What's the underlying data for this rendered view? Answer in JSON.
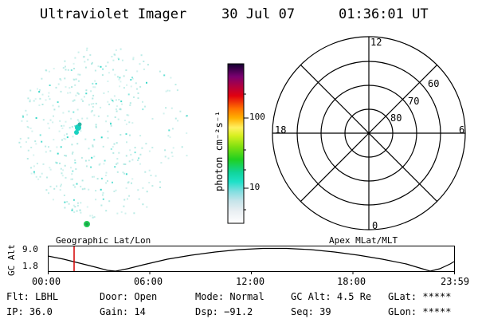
{
  "header": {
    "title": "Ultraviolet Imager",
    "date": "30 Jul 07",
    "time": "01:36:01 UT"
  },
  "colorbar": {
    "axis_label": "photon cm⁻²s⁻¹",
    "tick_100": "100",
    "tick_10": "10"
  },
  "polar_plot": {
    "mlt_labels": {
      "top": "12",
      "bottom": "0",
      "left": "18",
      "right": "6"
    },
    "lat_labels": [
      "60",
      "70",
      "80"
    ]
  },
  "projections": {
    "left": "Geographic Lat/Lon",
    "right": "Apex MLat/MLT"
  },
  "altitude_plot": {
    "ylabel": "GC Alt",
    "y_top": "9.0",
    "y_bottom": "1.8",
    "x_ticks": [
      "00:00",
      "06:00",
      "12:00",
      "18:00",
      "23:59"
    ]
  },
  "status": {
    "row1": [
      {
        "label": "Flt:",
        "value": "LBHL"
      },
      {
        "label": "Door:",
        "value": "Open"
      },
      {
        "label": "Mode:",
        "value": "Normal"
      },
      {
        "label": "GC Alt:",
        "value": "4.5 Re"
      },
      {
        "label": "GLat:",
        "value": "*****"
      }
    ],
    "row2": [
      {
        "label": "IP:",
        "value": "36.0"
      },
      {
        "label": "Gain:",
        "value": "14"
      },
      {
        "label": "Dsp:",
        "value": "−91.2"
      },
      {
        "label": "Seq:",
        "value": "39"
      },
      {
        "label": "GLon:",
        "value": "*****"
      }
    ]
  },
  "colors": {
    "marker": "#d40000",
    "scatter": "#a8e6df",
    "scatter_bright": "#19d2c0",
    "spot_green": "#22cc55"
  }
}
